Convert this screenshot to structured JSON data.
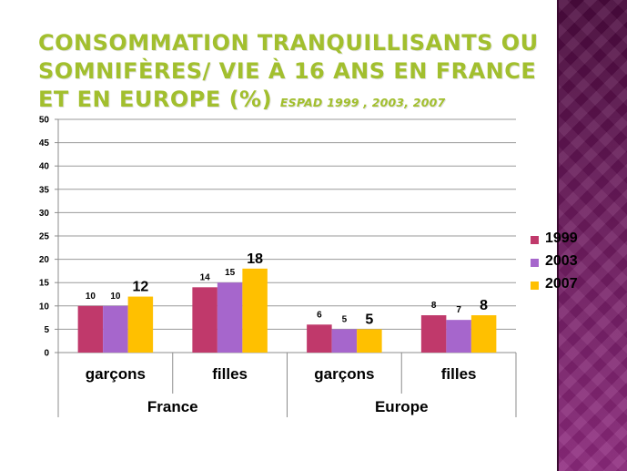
{
  "slide": {
    "title_main": "Consommation tranquillisants ou somnifères/ vie à 16 ans en France et en Europe (%)",
    "title_sub": "ESPAD 1999 , 2003, 2007"
  },
  "colors": {
    "title": "#a2bf2e",
    "s1999": "#c0396b",
    "s2003": "#a666cc",
    "s2007": "#ffc000"
  },
  "chart_data": {
    "type": "bar",
    "ylim": [
      0,
      50
    ],
    "yticks": [
      "0",
      "5",
      "10",
      "15",
      "20",
      "25",
      "30",
      "35",
      "40",
      "45",
      "50"
    ],
    "groups": [
      "France",
      "Europe"
    ],
    "categories": [
      "garçons",
      "filles",
      "garçons",
      "filles"
    ],
    "category_group": [
      "France",
      "France",
      "Europe",
      "Europe"
    ],
    "series": [
      {
        "name": "1999",
        "color": "#c0396b",
        "values": [
          10,
          14,
          6,
          8
        ],
        "labels": [
          "10",
          "14",
          "6",
          "8"
        ]
      },
      {
        "name": "2003",
        "color": "#a666cc",
        "values": [
          10,
          15,
          5,
          7
        ],
        "labels": [
          "10",
          "15",
          "5",
          "7"
        ]
      },
      {
        "name": "2007",
        "color": "#ffc000",
        "values": [
          12,
          18,
          5,
          8
        ],
        "labels": [
          "12",
          "18",
          "5",
          "8"
        ]
      }
    ],
    "legend_position": "right",
    "grid": true
  }
}
